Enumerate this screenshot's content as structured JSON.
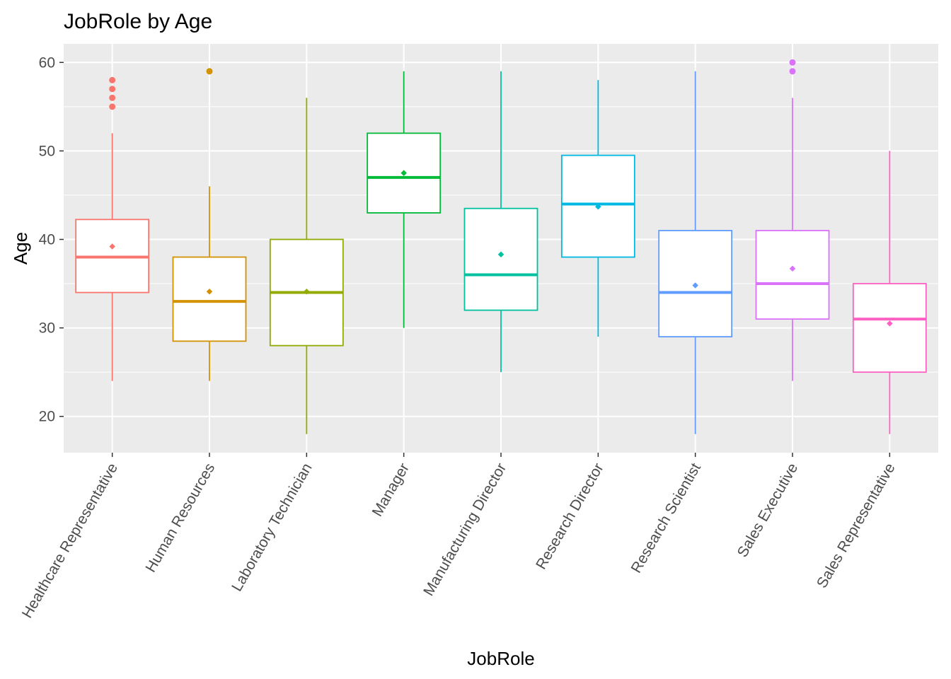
{
  "chart_data": {
    "type": "boxplot",
    "title": "JobRole by Age",
    "xlabel": "JobRole",
    "ylabel": "Age",
    "ylim": [
      15.9,
      62.1
    ],
    "yticks": [
      20,
      30,
      40,
      50,
      60
    ],
    "grid": true,
    "legend": "none",
    "categories": [
      "Healthcare Representative",
      "Human Resources",
      "Laboratory Technician",
      "Manager",
      "Manufacturing Director",
      "Research Director",
      "Research Scientist",
      "Sales Executive",
      "Sales Representative"
    ],
    "colors": [
      "#F8766D",
      "#D39200",
      "#93AA00",
      "#00BA38",
      "#00C19F",
      "#00B9E3",
      "#619CFF",
      "#DB72FB",
      "#FF61C3"
    ],
    "boxes": [
      {
        "whisker_low": 24,
        "q1": 34,
        "median": 38,
        "q3": 42.25,
        "whisker_high": 52,
        "mean": 39.2,
        "outliers": [
          55,
          56,
          57,
          58
        ]
      },
      {
        "whisker_low": 24,
        "q1": 28.5,
        "median": 33,
        "q3": 38,
        "whisker_high": 46,
        "mean": 34.1,
        "outliers": [
          59
        ]
      },
      {
        "whisker_low": 18,
        "q1": 28,
        "median": 34,
        "q3": 40,
        "whisker_high": 56,
        "mean": 34.1,
        "outliers": []
      },
      {
        "whisker_low": 30,
        "q1": 43,
        "median": 47,
        "q3": 52,
        "whisker_high": 59,
        "mean": 47.5,
        "outliers": []
      },
      {
        "whisker_low": 25,
        "q1": 32,
        "median": 36,
        "q3": 43.5,
        "whisker_high": 59,
        "mean": 38.3,
        "outliers": []
      },
      {
        "whisker_low": 29,
        "q1": 38,
        "median": 44,
        "q3": 49.5,
        "whisker_high": 58,
        "mean": 43.7,
        "outliers": []
      },
      {
        "whisker_low": 18,
        "q1": 29,
        "median": 34,
        "q3": 41,
        "whisker_high": 59,
        "mean": 34.8,
        "outliers": []
      },
      {
        "whisker_low": 24,
        "q1": 31,
        "median": 35,
        "q3": 41,
        "whisker_high": 56,
        "mean": 36.7,
        "outliers": [
          59,
          60
        ]
      },
      {
        "whisker_low": 18,
        "q1": 25,
        "median": 31,
        "q3": 35,
        "whisker_high": 50,
        "mean": 30.5,
        "outliers": []
      }
    ]
  }
}
